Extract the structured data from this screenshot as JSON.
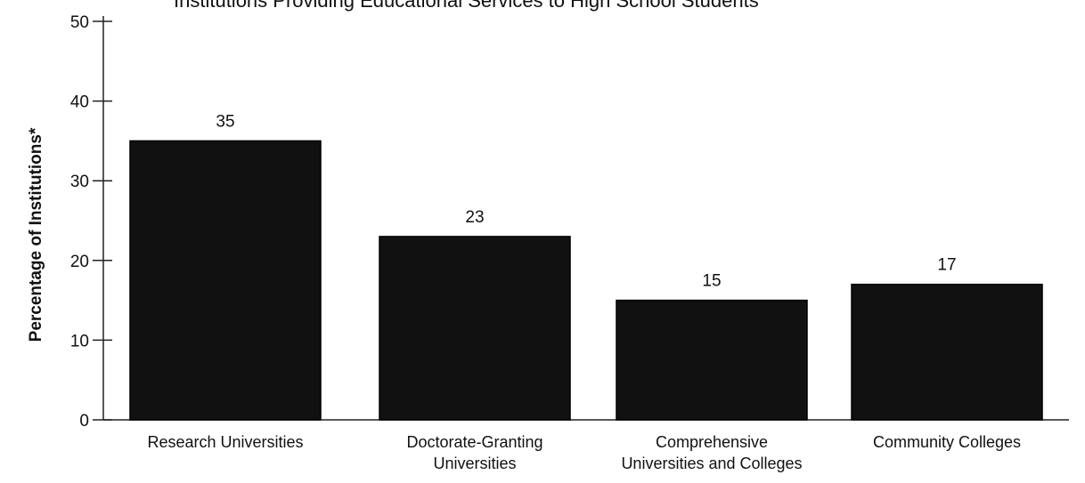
{
  "chart_data": {
    "type": "bar",
    "title": "Institutions Providing Educational Services to High School Students",
    "ylabel": "Percentage of Institutions*",
    "xlabel": "",
    "ylim": [
      0,
      50
    ],
    "yticks": [
      0,
      10,
      20,
      30,
      40,
      50
    ],
    "grid": false,
    "categories": [
      [
        "Research Universities"
      ],
      [
        "Doctorate-Granting",
        "Universities"
      ],
      [
        "Comprehensive",
        "Universities and Colleges"
      ],
      [
        "Community Colleges"
      ]
    ],
    "values": [
      35,
      23,
      15,
      17
    ],
    "data_labels": [
      "35",
      "23",
      "15",
      "17"
    ],
    "colors": {
      "bar": "#111111",
      "axis": "#222222",
      "bar_border": "#000000"
    }
  }
}
